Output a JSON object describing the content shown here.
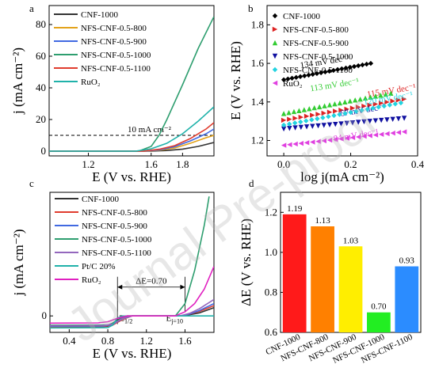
{
  "watermark": "Journal Pre-proof",
  "chart_data": [
    {
      "panel_label": "a",
      "type": "line",
      "xlabel": "E (V vs. RHE)",
      "ylabel": "j (mA cm⁻²)",
      "xlim": [
        0.95,
        2.0
      ],
      "ylim": [
        -3,
        92
      ],
      "xticks": [
        "1.2",
        "1.6",
        "1.8"
      ],
      "xtick_values": [
        1.2,
        1.6,
        1.8
      ],
      "yticks": [
        "0",
        "20",
        "40",
        "60",
        "80"
      ],
      "ytick_values": [
        0,
        20,
        40,
        60,
        80
      ],
      "legend_position": "top-left",
      "reference_line": {
        "y": 10,
        "label": "10 mA cm⁻²"
      },
      "series": [
        {
          "name": "CNF-1000",
          "color": "#333333",
          "x": [
            0.95,
            1.6,
            1.7,
            1.8,
            1.9,
            2.0
          ],
          "y": [
            0,
            0,
            0.4,
            1.3,
            3.0,
            5.5
          ]
        },
        {
          "name": "NFS-CNF-0.5-800",
          "color": "#e3a21a",
          "x": [
            0.95,
            1.55,
            1.65,
            1.75,
            1.85,
            1.95,
            2.0
          ],
          "y": [
            0,
            0,
            0.5,
            2.0,
            5.0,
            8.5,
            10
          ]
        },
        {
          "name": "NFS-CNF-0.5-900",
          "color": "#4169e1",
          "x": [
            0.95,
            1.55,
            1.65,
            1.75,
            1.85,
            1.95,
            2.0
          ],
          "y": [
            0,
            0,
            0.8,
            2.8,
            6.5,
            11.0,
            14.0
          ]
        },
        {
          "name": "NFS-CNF-0.5-1000",
          "color": "#2e9e6f",
          "x": [
            0.95,
            1.52,
            1.6,
            1.65,
            1.7,
            1.8,
            1.9,
            2.0
          ],
          "y": [
            0,
            0,
            3,
            10,
            20,
            42,
            65,
            85
          ]
        },
        {
          "name": "NFS-CNF-0.5-1100",
          "color": "#e03c2e",
          "x": [
            0.95,
            1.55,
            1.65,
            1.75,
            1.85,
            1.95,
            2.0
          ],
          "y": [
            0,
            0,
            1.2,
            3.5,
            8.0,
            14.0,
            18.0
          ]
        },
        {
          "name": "RuO₂",
          "color": "#20b2aa",
          "x": [
            0.95,
            1.5,
            1.6,
            1.7,
            1.8,
            1.9,
            2.0
          ],
          "y": [
            0,
            0,
            1.5,
            5.0,
            11.0,
            19.0,
            28.0
          ]
        }
      ]
    },
    {
      "panel_label": "b",
      "type": "scatter",
      "xlabel": "log j(mA cm⁻²)",
      "ylabel": "E (V vs. RHE)",
      "xlim": [
        -0.05,
        0.4
      ],
      "ylim": [
        1.12,
        1.9
      ],
      "xticks": [
        "0.0",
        "0.2",
        "0.4"
      ],
      "xtick_values": [
        0.0,
        0.2,
        0.4
      ],
      "yticks": [
        "1.2",
        "1.4",
        "1.6",
        "1.8"
      ],
      "ytick_values": [
        1.2,
        1.4,
        1.6,
        1.8
      ],
      "legend_position": "top-left",
      "series": [
        {
          "name": "CNF-1000",
          "color": "#000000",
          "marker": "diamond",
          "slope_label": "134 mV dec⁻¹",
          "x": [
            0.0,
            0.26
          ],
          "y": [
            1.515,
            1.6
          ]
        },
        {
          "name": "NFS-CNF-0.5-800",
          "color": "#dd2222",
          "marker": "triangle-right",
          "slope_label": "115 mV dec⁻¹",
          "x": [
            0.0,
            0.36
          ],
          "y": [
            1.305,
            1.415
          ]
        },
        {
          "name": "NFS-CNF-0.5-900",
          "color": "#33cc33",
          "marker": "triangle-up",
          "slope_label": "113 mV dec⁻¹",
          "x": [
            0.0,
            0.32
          ],
          "y": [
            1.34,
            1.445
          ]
        },
        {
          "name": "NFS-CNF-0.5-1000",
          "color": "#1010a0",
          "marker": "triangle-down",
          "slope_label": "67 mV dec⁻¹",
          "x": [
            0.0,
            0.36
          ],
          "y": [
            1.26,
            1.315
          ]
        },
        {
          "name": "NFS-CNF-0.5-1100",
          "color": "#22d3e0",
          "marker": "diamond",
          "slope_label": "120 mV dec⁻¹",
          "x": [
            0.0,
            0.35
          ],
          "y": [
            1.28,
            1.395
          ]
        },
        {
          "name": "RuO₂",
          "color": "#e040e0",
          "marker": "triangle-left",
          "slope_label": "84 mV dec⁻¹",
          "x": [
            0.0,
            0.36
          ],
          "y": [
            1.175,
            1.245
          ]
        }
      ]
    },
    {
      "panel_label": "c",
      "type": "line",
      "xlabel": "E (V vs. RHE)",
      "ylabel": "j (mA cm⁻²)",
      "xlim": [
        0.2,
        1.9
      ],
      "ylim": [
        -8,
        60
      ],
      "xticks": [
        "0.4",
        "0.8",
        "1.2",
        "1.6"
      ],
      "xtick_values": [
        0.4,
        0.8,
        1.2,
        1.6
      ],
      "yticks": [
        "0"
      ],
      "ytick_values": [
        0
      ],
      "legend_position": "top-left",
      "annotations": {
        "delta_e": "ΔE=0.70",
        "e_half": "E",
        "e_half_sub": "1/2",
        "e_j10": "E",
        "e_j10_sub": "j=10",
        "e_half_x": 0.9,
        "e_j10_x": 1.6
      },
      "series": [
        {
          "name": "CNF-1000",
          "color": "#333333",
          "x": [
            0.2,
            0.7,
            0.8,
            0.9,
            1.0,
            1.55,
            1.65,
            1.75,
            1.9
          ],
          "y": [
            -5.5,
            -5.4,
            -5.0,
            -2.0,
            0,
            0,
            0.6,
            1.5,
            4.0
          ]
        },
        {
          "name": "NFS-CNF-0.5-800",
          "color": "#e03c2e",
          "x": [
            0.2,
            0.75,
            0.85,
            0.95,
            1.05,
            1.55,
            1.65,
            1.75,
            1.9
          ],
          "y": [
            -5.2,
            -5.1,
            -4.5,
            -1.8,
            0,
            0,
            0.9,
            2.2,
            5.0
          ]
        },
        {
          "name": "NFS-CNF-0.5-900",
          "color": "#4169e1",
          "x": [
            0.2,
            0.75,
            0.85,
            0.95,
            1.05,
            1.55,
            1.65,
            1.75,
            1.9
          ],
          "y": [
            -5.0,
            -4.9,
            -4.2,
            -1.5,
            0,
            0,
            1.0,
            2.6,
            6.0
          ]
        },
        {
          "name": "NFS-CNF-0.5-1000",
          "color": "#2e9e6f",
          "x": [
            0.2,
            0.8,
            0.88,
            0.95,
            1.05,
            1.5,
            1.6,
            1.7,
            1.8,
            1.85
          ],
          "y": [
            -4.5,
            -4.4,
            -3.0,
            -1.0,
            0,
            0,
            6,
            22,
            44,
            58
          ]
        },
        {
          "name": "NFS-CNF-0.5-1100",
          "color": "#9467bd",
          "x": [
            0.2,
            0.75,
            0.85,
            0.95,
            1.05,
            1.55,
            1.65,
            1.75,
            1.9
          ],
          "y": [
            -4.8,
            -4.7,
            -4.0,
            -1.4,
            0,
            0,
            1.3,
            3.5,
            8.0
          ]
        },
        {
          "name": "Pt/C 20%",
          "color": "#20b2aa",
          "x": [
            0.2,
            0.8,
            0.85,
            0.9,
            0.95,
            1.0,
            1.9
          ],
          "y": [
            -5.8,
            -5.7,
            -4.5,
            -1.0,
            -0.1,
            0,
            0
          ]
        },
        {
          "name": "RuO₂",
          "color": "#e020c0",
          "x": [
            0.2,
            0.7,
            0.8,
            0.9,
            1.0,
            1.5,
            1.6,
            1.7,
            1.8,
            1.9
          ],
          "y": [
            -3.5,
            -3.4,
            -2.8,
            -1.2,
            0,
            0,
            2,
            6,
            13,
            24
          ]
        }
      ]
    },
    {
      "panel_label": "d",
      "type": "bar",
      "ylabel": "ΔE (V vs. RHE)",
      "ylim": [
        0.6,
        1.3
      ],
      "yticks": [
        "0.6",
        "0.8",
        "1.0",
        "1.2"
      ],
      "ytick_values": [
        0.6,
        0.8,
        1.0,
        1.2
      ],
      "categories": [
        "CNF-1000",
        "NFS-CNF-800",
        "NFS-CNF-900",
        "NFS-CNF-1000",
        "NFS-CNF-1100"
      ],
      "values": [
        1.19,
        1.13,
        1.03,
        0.7,
        0.93
      ],
      "value_labels": [
        "1.19",
        "1.13",
        "1.03",
        "0.70",
        "0.93"
      ],
      "colors": [
        "#ff1a1a",
        "#ff8000",
        "#ffee00",
        "#22ee22",
        "#2b8cff"
      ]
    }
  ]
}
